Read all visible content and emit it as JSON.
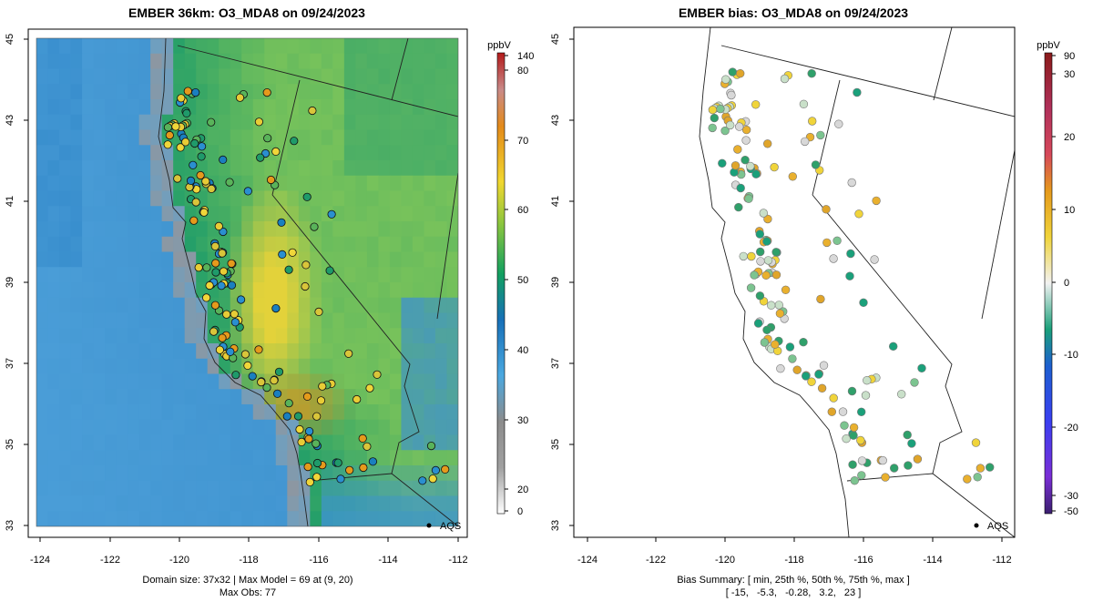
{
  "left_panel": {
    "title": "EMBER 36km: O3_MDA8 on 09/24/2023",
    "footer_line1": "Domain size: 37x32 | Max Model = 69 at (9, 20)",
    "footer_line2": "Max Obs: 77",
    "x_ticks": [
      "-124",
      "-122",
      "-120",
      "-118",
      "-116",
      "-114",
      "-112"
    ],
    "y_ticks": [
      "33",
      "35",
      "37",
      "39",
      "41",
      "43",
      "45"
    ],
    "legend_unit": "ppbV",
    "legend_ticks": [
      "140",
      "80",
      "70",
      "60",
      "50",
      "40",
      "30",
      "20",
      "0"
    ],
    "site_label": "AQS"
  },
  "right_panel": {
    "title": "EMBER bias: O3_MDA8 on 09/24/2023",
    "footer_line1": "Bias Summary: [ min, 25th %, 50th %, 75th %, max ]",
    "footer_line2": "[ -15,   -5.3,   -0.28,   3.2,   23 ]",
    "x_ticks": [
      "-124",
      "-122",
      "-120",
      "-118",
      "-116",
      "-114",
      "-112"
    ],
    "y_ticks": [
      "33",
      "35",
      "37",
      "39",
      "41",
      "43",
      "45"
    ],
    "legend_unit": "ppbV",
    "legend_ticks": [
      "90",
      "30",
      "20",
      "10",
      "0",
      "-10",
      "-20",
      "-30",
      "-50"
    ],
    "site_label": "AQS"
  },
  "colors": {
    "ocean_far": "#4b9ed8",
    "ocean_near": "#3f93cf",
    "coast_gray": "#8d97a1",
    "forest_green": "#1d9c6a",
    "valley_yellow": "#e3d23a",
    "hot_orange": "#e59a1c"
  }
}
